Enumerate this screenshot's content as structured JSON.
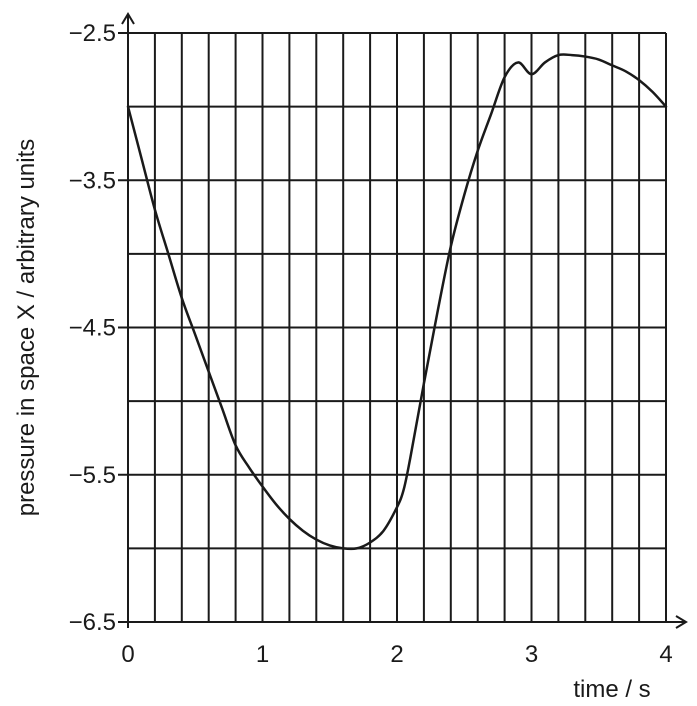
{
  "chart_data": {
    "type": "line",
    "xlabel": "time / s",
    "ylabel": "pressure in space X / arbitrary units",
    "xlim": [
      0,
      4
    ],
    "ylim": [
      -6.5,
      -2.5
    ],
    "x_ticks": [
      0,
      1,
      2,
      3,
      4
    ],
    "x_tick_labels": [
      "0",
      "1",
      "2",
      "3",
      "4"
    ],
    "y_ticks": [
      -6.5,
      -5.5,
      -4.5,
      -3.5,
      -2.5
    ],
    "y_tick_labels": [
      "−6.5",
      "−5.5",
      "−4.5",
      "−3.5",
      "−2.5"
    ],
    "x_minor_step": 0.2,
    "y_minor_step": 0.5,
    "grid": true,
    "series": [
      {
        "x": [
          0,
          0.1,
          0.2,
          0.3,
          0.4,
          0.5,
          0.6,
          0.7,
          0.8,
          0.9,
          1.0,
          1.1,
          1.2,
          1.3,
          1.4,
          1.5,
          1.6,
          1.7,
          1.8,
          1.9,
          2.0,
          2.05,
          2.1,
          2.2,
          2.3,
          2.4,
          2.5,
          2.6,
          2.7,
          2.8,
          2.9,
          3.0,
          3.1,
          3.2,
          3.3,
          3.4,
          3.5,
          3.6,
          3.7,
          3.8,
          3.9,
          4.0
        ],
        "values": [
          -3.0,
          -3.35,
          -3.7,
          -4.0,
          -4.3,
          -4.55,
          -4.8,
          -5.05,
          -5.3,
          -5.45,
          -5.58,
          -5.7,
          -5.8,
          -5.88,
          -5.94,
          -5.98,
          -6.0,
          -6.0,
          -5.96,
          -5.88,
          -5.72,
          -5.6,
          -5.38,
          -4.88,
          -4.4,
          -3.95,
          -3.6,
          -3.3,
          -3.05,
          -2.8,
          -2.7,
          -2.78,
          -2.7,
          -2.65,
          -2.65,
          -2.66,
          -2.68,
          -2.72,
          -2.76,
          -2.82,
          -2.9,
          -3.0
        ]
      }
    ]
  }
}
